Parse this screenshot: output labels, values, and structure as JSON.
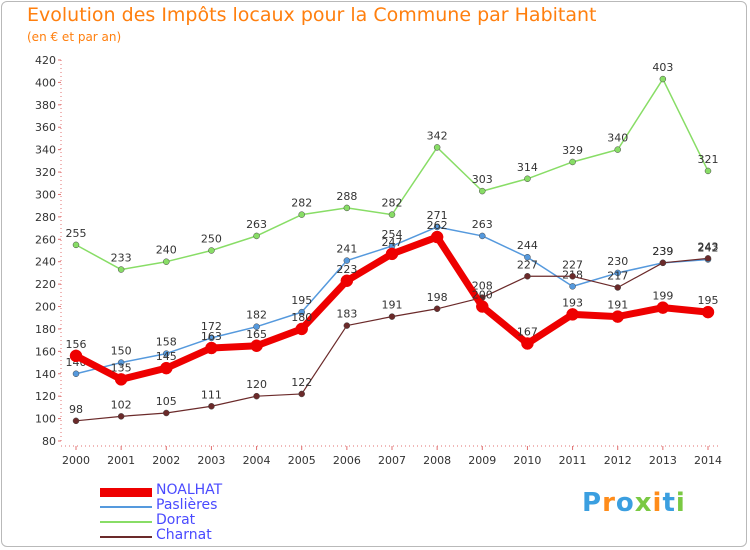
{
  "title": "Evolution des Impôts locaux pour la Commune par Habitant",
  "subtitle": "(en € et par an)",
  "logo": {
    "text": "Proxiti"
  },
  "chart_data": {
    "type": "line",
    "x": [
      "2000",
      "2001",
      "2002",
      "2003",
      "2004",
      "2005",
      "2006",
      "2007",
      "2008",
      "2009",
      "2010",
      "2011",
      "2012",
      "2013",
      "2014"
    ],
    "ylim": [
      80,
      420
    ],
    "yticks": [
      80,
      100,
      120,
      140,
      160,
      180,
      200,
      220,
      240,
      260,
      280,
      300,
      320,
      340,
      360,
      380,
      400,
      420
    ],
    "grid": false,
    "legend_position": "bottom-left",
    "series": [
      {
        "name": "Dorat",
        "color": "#88dd66",
        "width": 1.5,
        "marker": 3,
        "values": [
          255,
          233,
          240,
          250,
          263,
          282,
          288,
          282,
          342,
          303,
          314,
          329,
          340,
          403,
          321
        ],
        "labels": [
          "255",
          "233",
          "240",
          "250",
          "263",
          "282",
          "288",
          "282",
          "342",
          "303",
          "314",
          "329",
          "340",
          "403",
          "321"
        ]
      },
      {
        "name": "Paslières",
        "color": "#5599dd",
        "width": 1.5,
        "marker": 3,
        "values": [
          140,
          150,
          158,
          172,
          182,
          195,
          241,
          254,
          271,
          263,
          244,
          218,
          230,
          239,
          242
        ],
        "labels": [
          "140",
          "150",
          "158",
          "172",
          "182",
          "195",
          "241",
          "254",
          "271",
          "263",
          "244",
          "218",
          "230",
          "239",
          "242"
        ]
      },
      {
        "name": "Charnat",
        "color": "#6b2a2a",
        "width": 1.2,
        "marker": 3,
        "values": [
          98,
          102,
          105,
          111,
          120,
          122,
          183,
          191,
          198,
          208,
          227,
          227,
          217,
          239,
          243
        ],
        "labels": [
          "98",
          "102",
          "105",
          "111",
          "120",
          "122",
          "183",
          "191",
          "198",
          "208",
          "227",
          "227",
          "217",
          "239",
          "243"
        ]
      },
      {
        "name": "NOALHAT",
        "color": "#ee0000",
        "width": 7,
        "marker": 6,
        "values": [
          156,
          135,
          145,
          163,
          165,
          180,
          223,
          247,
          262,
          200,
          167,
          193,
          191,
          199,
          195
        ],
        "labels": [
          "156",
          "135",
          "145",
          "163",
          "165",
          "180",
          "223",
          "247",
          "262",
          "200",
          "167",
          "193",
          "191",
          "199",
          "195"
        ]
      }
    ]
  }
}
